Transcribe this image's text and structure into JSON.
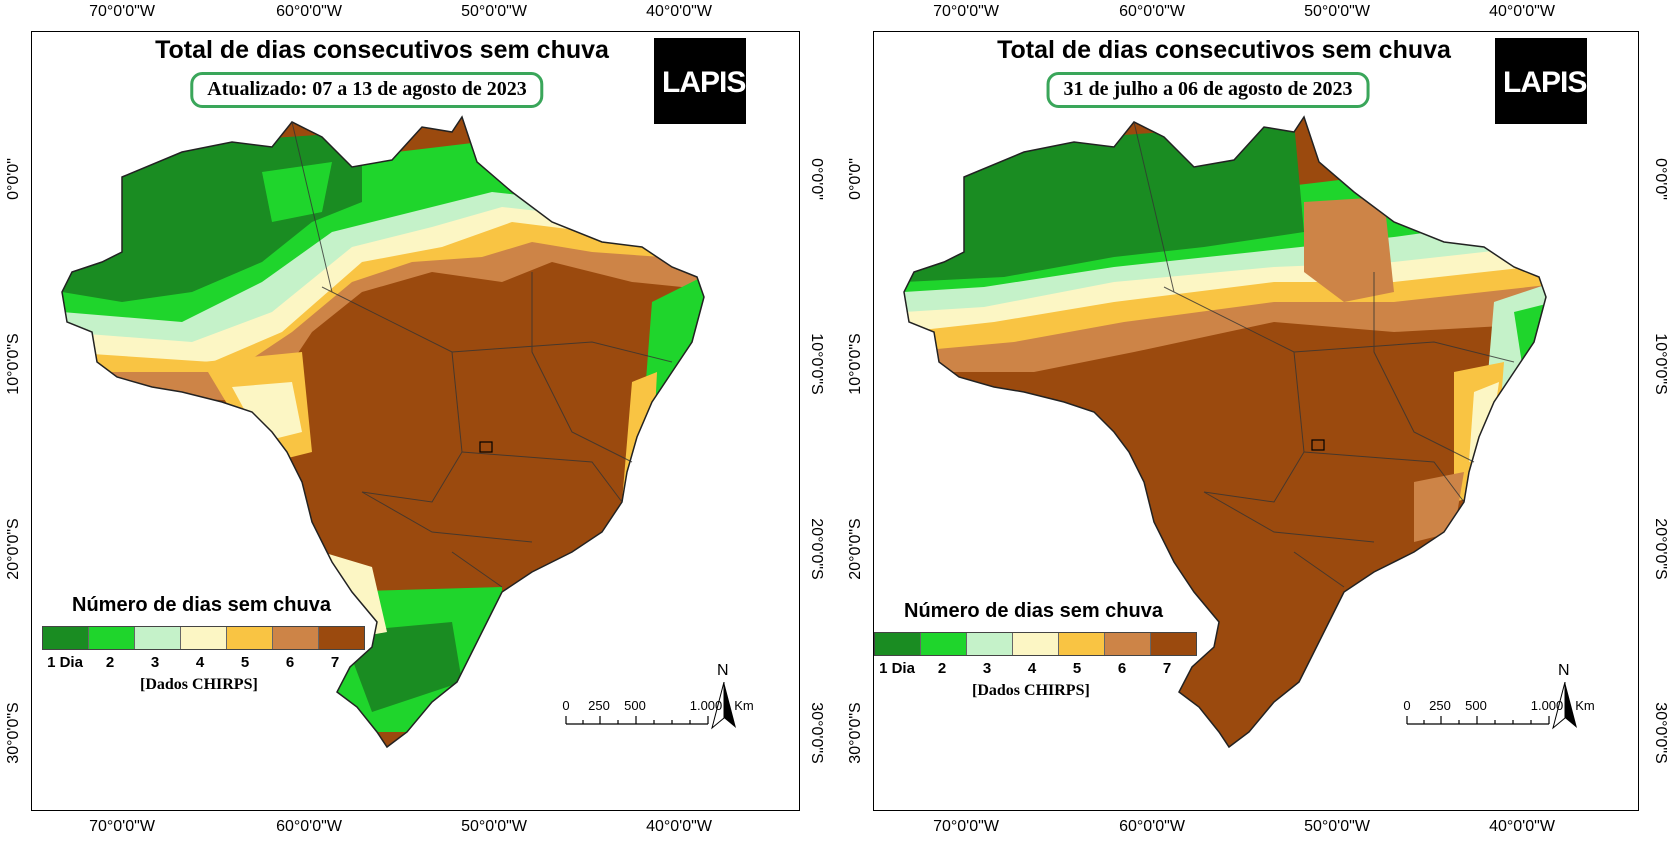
{
  "panels": [
    {
      "title": "Total de dias consecutivos sem chuva",
      "date_label": "Atualizado: 07 a 13 de agosto de 2023",
      "logo_text": "LAPIS",
      "lon_labels": [
        "70°0'0\"W",
        "60°0'0\"W",
        "50°0'0\"W",
        "40°0'0\"W"
      ],
      "lat_labels": [
        "0°0'0\"",
        "10°0'0\"S",
        "20°0'0\"S",
        "30°0'0\"S"
      ],
      "scenario": "wet-north"
    },
    {
      "title": "Total de dias consecutivos sem chuva",
      "date_label": "31 de julho a 06 de agosto de 2023",
      "logo_text": "LAPIS",
      "lon_labels": [
        "70°0'0\"W",
        "60°0'0\"W",
        "50°0'0\"W",
        "40°0'0\"W"
      ],
      "lat_labels": [
        "0°0'0\"",
        "10°0'0\"S",
        "20°0'0\"S",
        "30°0'0\"S"
      ],
      "scenario": "dry"
    }
  ],
  "legend": {
    "title": "Número de dias sem chuva",
    "classes": [
      {
        "label": "1 Dia",
        "color": "#1a8c22"
      },
      {
        "label": "2",
        "color": "#1fd52c"
      },
      {
        "label": "3",
        "color": "#c5f2c9"
      },
      {
        "label": "4",
        "color": "#fcf6c4"
      },
      {
        "label": "5",
        "color": "#f9c443"
      },
      {
        "label": "6",
        "color": "#cd8447"
      },
      {
        "label": "7",
        "color": "#9b4a0e"
      }
    ],
    "source": "[Dados CHIRPS]"
  },
  "north_label": "N",
  "scale_bar": {
    "labels": [
      "0",
      "250",
      "500",
      "1.000"
    ],
    "unit": "Km"
  }
}
